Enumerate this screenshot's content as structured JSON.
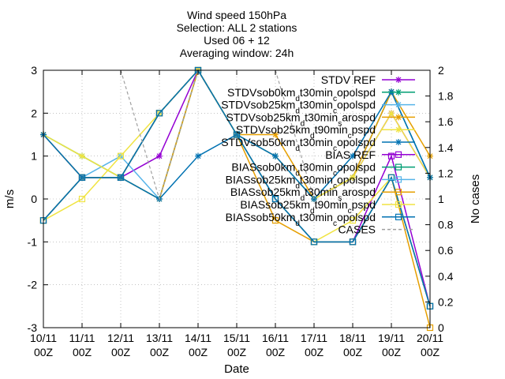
{
  "chart_data": {
    "type": "line",
    "title_lines": [
      "Wind speed 150hPa",
      "Selection: ALL       2 stations",
      "Used 06 + 12",
      "Averaging window: 24h"
    ],
    "xlabel": "Date",
    "ylabel": "m/s",
    "y2label": "No cases",
    "categories": [
      "10/11",
      "11/11",
      "12/11",
      "13/11",
      "14/11",
      "15/11",
      "16/11",
      "17/11",
      "18/11",
      "19/11",
      "20/11"
    ],
    "category_sublabel": "00Z",
    "ylim": [
      -3,
      3
    ],
    "y2lim": [
      0,
      2
    ],
    "yticks": [
      "-3",
      "-2",
      "-1",
      "0",
      "1",
      "2",
      "3"
    ],
    "y2ticks": [
      "0",
      "0.2",
      "0.4",
      "0.6",
      "0.8",
      "1",
      "1.2",
      "1.4",
      "1.6",
      "1.8",
      "2"
    ],
    "grid": true,
    "legend_position": "top-right",
    "series": [
      {
        "name": "STDV REF",
        "color": "#9400d3",
        "marker": "star",
        "axis": "y",
        "values": [
          1.5,
          0.5,
          0.5,
          1.0,
          3.0,
          1.5,
          1.0,
          0.0,
          0.5,
          2.0,
          0.5
        ]
      },
      {
        "name": "STDV sob0km_d t30min_c opolspd",
        "color": "#009e73",
        "marker": "star",
        "axis": "y",
        "values": [
          1.5,
          1.0,
          0.5,
          0.0,
          3.0,
          1.5,
          1.0,
          0.0,
          0.5,
          2.5,
          0.5
        ]
      },
      {
        "name": "STDV sob25km_d t30min_c opolspd",
        "color": "#56b4e9",
        "marker": "star",
        "axis": "y",
        "values": [
          1.5,
          0.5,
          1.0,
          0.0,
          3.0,
          1.5,
          1.0,
          0.0,
          0.5,
          2.5,
          0.5
        ]
      },
      {
        "name": "STDV sob25km_d t30min_s arospd",
        "color": "#e69f00",
        "marker": "star",
        "axis": "y",
        "values": [
          1.5,
          0.5,
          0.5,
          0.0,
          3.0,
          1.5,
          1.5,
          0.0,
          0.5,
          2.5,
          1.0
        ]
      },
      {
        "name": "STDV sob25km_d t90min_c pspd",
        "color": "#f0e442",
        "marker": "star",
        "axis": "y",
        "values": [
          1.5,
          1.0,
          0.5,
          2.0,
          3.0,
          1.5,
          1.0,
          0.0,
          0.5,
          2.0,
          0.5
        ]
      },
      {
        "name": "STDV sob50km_d t30min_c opolspd",
        "color": "#0072b2",
        "marker": "star",
        "axis": "y",
        "values": [
          1.5,
          0.5,
          0.5,
          0.0,
          1.0,
          1.5,
          1.0,
          0.0,
          1.0,
          2.5,
          0.5
        ]
      },
      {
        "name": "BIAS REF",
        "color": "#9400d3",
        "marker": "square",
        "axis": "y",
        "values": [
          -0.5,
          0.5,
          0.5,
          2.0,
          3.0,
          1.5,
          0.0,
          -1.0,
          -1.0,
          1.0,
          -2.5
        ]
      },
      {
        "name": "BIAS sob0km_d t30min_c opolspd",
        "color": "#009e73",
        "marker": "square",
        "axis": "y",
        "values": [
          -0.5,
          0.5,
          0.5,
          2.0,
          3.0,
          1.5,
          0.0,
          -1.0,
          -1.0,
          0.5,
          -2.5
        ]
      },
      {
        "name": "BIAS sob25km_d t30min_c opolspd",
        "color": "#56b4e9",
        "marker": "square",
        "axis": "y",
        "values": [
          -0.5,
          0.5,
          0.5,
          2.0,
          3.0,
          1.5,
          0.0,
          -1.0,
          -1.0,
          0.5,
          -2.5
        ]
      },
      {
        "name": "BIAS sob25km_d t30min_s arospd",
        "color": "#e69f00",
        "marker": "square",
        "axis": "y",
        "values": [
          -0.5,
          0.5,
          0.5,
          2.0,
          3.0,
          1.5,
          -0.5,
          -1.0,
          -1.0,
          0.5,
          -3.0
        ]
      },
      {
        "name": "BIAS sob25km_d t90min_c pspd",
        "color": "#f0e442",
        "marker": "square",
        "axis": "y",
        "values": [
          -0.5,
          0.0,
          1.0,
          2.0,
          3.0,
          1.5,
          0.0,
          -1.0,
          -0.5,
          0.5,
          -2.5
        ]
      },
      {
        "name": "BIAS sob50km_d t30min_c opolspd",
        "color": "#0072b2",
        "marker": "square",
        "axis": "y",
        "values": [
          -0.5,
          0.5,
          0.5,
          2.0,
          3.0,
          1.5,
          0.0,
          -1.0,
          -1.0,
          0.5,
          -2.5
        ]
      },
      {
        "name": "CASES",
        "color": "#a0a0a0",
        "marker": "none",
        "dashed": true,
        "axis": "y2",
        "values": [
          null,
          null,
          2.0,
          1.0,
          2.0,
          null,
          2.0,
          1.0,
          null,
          null,
          null
        ]
      }
    ]
  }
}
